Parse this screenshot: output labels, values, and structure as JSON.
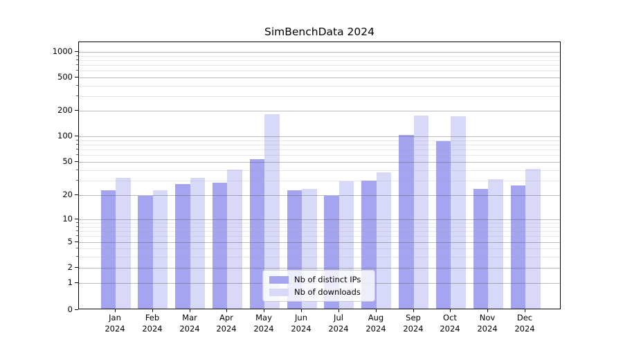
{
  "chart_data": {
    "type": "bar",
    "title": "SimBenchData 2024",
    "categories": [
      "Jan",
      "Feb",
      "Mar",
      "Apr",
      "May",
      "Jun",
      "Jul",
      "Aug",
      "Sep",
      "Oct",
      "Nov",
      "Dec"
    ],
    "category_year": "2024",
    "series": [
      {
        "name": "Nb of distinct IPs",
        "color": "#a4a4f0",
        "values": [
          22,
          19,
          26,
          27,
          52,
          22,
          19,
          29,
          100,
          85,
          23,
          25
        ]
      },
      {
        "name": "Nb of downloads",
        "color": "#d8d8f8",
        "values": [
          31,
          22,
          31,
          39,
          175,
          23,
          28,
          36,
          168,
          166,
          30,
          40
        ]
      }
    ],
    "yscale": "symlog",
    "ylim": [
      0,
      1250
    ],
    "y_ticks": [
      0,
      1,
      2,
      5,
      10,
      20,
      50,
      100,
      200,
      500,
      1000
    ],
    "y_minor_ticks": [
      3,
      4,
      6,
      7,
      8,
      9,
      30,
      40,
      60,
      70,
      80,
      90,
      300,
      400,
      600,
      700,
      800,
      900
    ],
    "grid": "major+minor",
    "legend_position": "lower center",
    "xlabel": "",
    "ylabel": ""
  },
  "colors": {
    "bar_distinct_ips": "#a4a4f0",
    "bar_downloads": "#d8d8f8",
    "axis": "#000000",
    "grid_major": "#b4b4b4",
    "grid_minor": "#e3e3e3",
    "background": "#ffffff",
    "legend_border": "#cccccc"
  }
}
